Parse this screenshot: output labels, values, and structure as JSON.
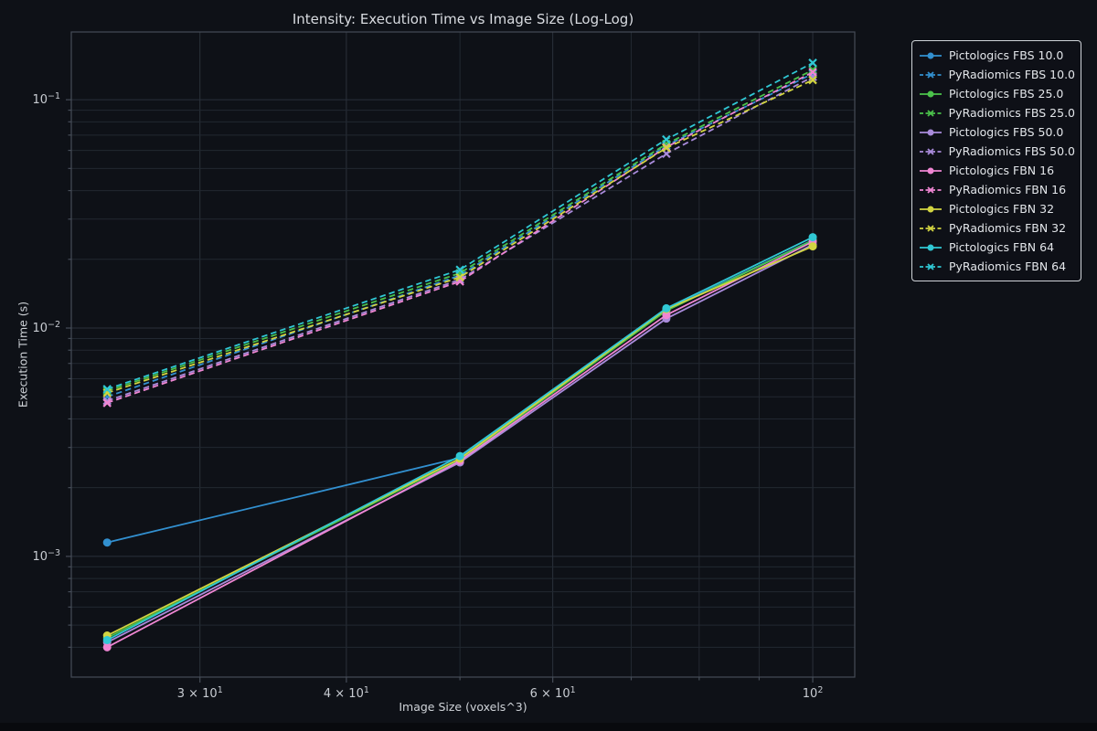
{
  "figure": {
    "background_color": "#0e1117",
    "grid_minor_color": "#222831",
    "grid_major_color": "#2a313b",
    "spine_color": "#454c57",
    "tick_label_color": "#c8ccd2",
    "text_color": "#d8dbe0",
    "legend_border_color": "#cfd3d8"
  },
  "chart_data": {
    "type": "line",
    "title": "Intensity: Execution Time vs Image Size (Log-Log)",
    "xlabel": "Image Size (voxels^3)",
    "ylabel": "Execution Time (s)",
    "x_scale": "log",
    "y_scale": "log",
    "xlim": [
      23.3,
      108.6
    ],
    "ylim": [
      0.000296,
      0.198
    ],
    "grid": "on",
    "legend_position": "outside upper right",
    "x": [
      25,
      50,
      75,
      100
    ],
    "x_ticks": [
      {
        "v": 30,
        "label": "3 × 10^1"
      },
      {
        "v": 40,
        "label": "4 × 10^1"
      },
      {
        "v": 50,
        "label": ""
      },
      {
        "v": 60,
        "label": "6 × 10^1"
      },
      {
        "v": 70,
        "label": ""
      },
      {
        "v": 80,
        "label": ""
      },
      {
        "v": 90,
        "label": ""
      },
      {
        "v": 100,
        "label": "10^2"
      }
    ],
    "y_ticks_major": [
      {
        "v": 0.1,
        "label": "10^-1"
      },
      {
        "v": 0.01,
        "label": "10^-2"
      },
      {
        "v": 0.001,
        "label": "10^-3"
      }
    ],
    "y_ticks_minor": [
      0.0004,
      0.0005,
      0.0006,
      0.0007,
      0.0008,
      0.0009,
      0.002,
      0.003,
      0.004,
      0.005,
      0.006,
      0.007,
      0.008,
      0.009,
      0.02,
      0.03,
      0.04,
      0.05,
      0.06,
      0.07,
      0.08,
      0.09
    ],
    "series": [
      {
        "name": "Pictologics FBS 10.0",
        "color": "#3290d0",
        "dash": "solid",
        "marker": "circle",
        "values": [
          0.00115,
          0.0027,
          0.012,
          0.0243
        ]
      },
      {
        "name": "PyRadiomics FBS 10.0",
        "color": "#3290d0",
        "dash": "dashed",
        "marker": "x",
        "values": [
          0.005,
          0.017,
          0.063,
          0.13
        ]
      },
      {
        "name": "Pictologics FBS 25.0",
        "color": "#4bc24b",
        "dash": "solid",
        "marker": "circle",
        "values": [
          0.00044,
          0.00265,
          0.0119,
          0.0242
        ]
      },
      {
        "name": "PyRadiomics FBS 25.0",
        "color": "#4bc24b",
        "dash": "dashed",
        "marker": "x",
        "values": [
          0.0053,
          0.0174,
          0.064,
          0.135
        ]
      },
      {
        "name": "Pictologics FBS 50.0",
        "color": "#a98bdb",
        "dash": "solid",
        "marker": "circle",
        "values": [
          0.00042,
          0.00258,
          0.011,
          0.0232
        ]
      },
      {
        "name": "PyRadiomics FBS 50.0",
        "color": "#a98bdb",
        "dash": "dashed",
        "marker": "x",
        "values": [
          0.0048,
          0.0163,
          0.058,
          0.126
        ]
      },
      {
        "name": "Pictologics FBN 16",
        "color": "#ef86d3",
        "dash": "solid",
        "marker": "circle",
        "values": [
          0.0004,
          0.00262,
          0.0114,
          0.0239
        ]
      },
      {
        "name": "PyRadiomics FBN 16",
        "color": "#ef86d3",
        "dash": "dashed",
        "marker": "x",
        "values": [
          0.0047,
          0.016,
          0.062,
          0.132
        ]
      },
      {
        "name": "Pictologics FBN 32",
        "color": "#d2d441",
        "dash": "solid",
        "marker": "circle",
        "values": [
          0.00045,
          0.00268,
          0.0121,
          0.0228
        ]
      },
      {
        "name": "PyRadiomics FBN 32",
        "color": "#d2d441",
        "dash": "dashed",
        "marker": "x",
        "values": [
          0.0052,
          0.0167,
          0.0615,
          0.122
        ]
      },
      {
        "name": "Pictologics FBN 64",
        "color": "#30c8d4",
        "dash": "solid",
        "marker": "circle",
        "values": [
          0.00043,
          0.00275,
          0.0122,
          0.025
        ]
      },
      {
        "name": "PyRadiomics FBN 64",
        "color": "#30c8d4",
        "dash": "dashed",
        "marker": "x",
        "values": [
          0.0054,
          0.018,
          0.067,
          0.145
        ]
      }
    ]
  }
}
